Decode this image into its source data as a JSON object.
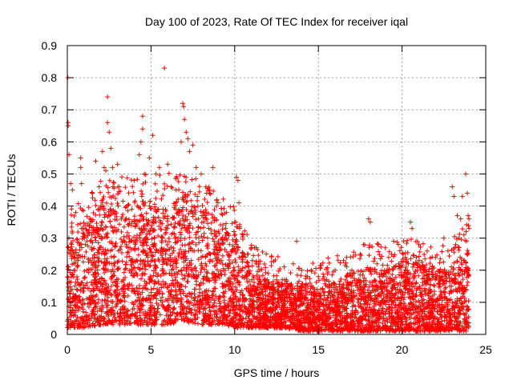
{
  "chart_data": {
    "type": "scatter",
    "title": "Day 100 of 2023, Rate Of TEC Index for receiver iqal",
    "xlabel": "GPS time / hours",
    "ylabel": "ROTI / TECUs",
    "xlim": [
      0,
      25
    ],
    "ylim": [
      0,
      0.9
    ],
    "x_ticks": [
      0,
      5,
      10,
      15,
      20,
      25
    ],
    "y_ticks": [
      0,
      0.1,
      0.2,
      0.3,
      0.4,
      0.5,
      0.6,
      0.7,
      0.8,
      0.9
    ],
    "x_tick_labels": [
      "0",
      "5",
      "10",
      "15",
      "20",
      "25"
    ],
    "y_tick_labels": [
      "0",
      "0.1",
      "0.2",
      "0.3",
      "0.4",
      "0.5",
      "0.6",
      "0.7",
      "0.8",
      "0.9"
    ],
    "grid": true,
    "marker": "+",
    "color": "#ff0000",
    "series": [
      {
        "name": "ROTI",
        "points": [
          [
            0.03,
            0.8
          ],
          [
            0.05,
            0.66
          ],
          [
            0.05,
            0.65
          ],
          [
            0.1,
            0.56
          ],
          [
            0.2,
            0.47
          ],
          [
            0.3,
            0.45
          ],
          [
            0.5,
            0.38
          ],
          [
            0.8,
            0.55
          ],
          [
            0.8,
            0.52
          ],
          [
            0.85,
            0.47
          ],
          [
            1.5,
            0.44
          ],
          [
            1.7,
            0.54
          ],
          [
            1.9,
            0.46
          ],
          [
            2.1,
            0.57
          ],
          [
            2.2,
            0.52
          ],
          [
            2.3,
            0.51
          ],
          [
            2.4,
            0.74
          ],
          [
            2.4,
            0.66
          ],
          [
            2.5,
            0.63
          ],
          [
            2.6,
            0.58
          ],
          [
            2.7,
            0.52
          ],
          [
            3.0,
            0.53
          ],
          [
            3.1,
            0.46
          ],
          [
            4.0,
            0.48
          ],
          [
            4.3,
            0.56
          ],
          [
            4.4,
            0.6
          ],
          [
            4.5,
            0.68
          ],
          [
            4.5,
            0.64
          ],
          [
            4.6,
            0.5
          ],
          [
            4.9,
            0.55
          ],
          [
            5.1,
            0.62
          ],
          [
            5.3,
            0.5
          ],
          [
            5.5,
            0.52
          ],
          [
            5.8,
            0.83
          ],
          [
            6.0,
            0.53
          ],
          [
            6.2,
            0.46
          ],
          [
            6.5,
            0.45
          ],
          [
            6.8,
            0.6
          ],
          [
            6.9,
            0.72
          ],
          [
            6.95,
            0.71
          ],
          [
            7.0,
            0.67
          ],
          [
            7.1,
            0.63
          ],
          [
            7.2,
            0.61
          ],
          [
            7.3,
            0.57
          ],
          [
            7.5,
            0.59
          ],
          [
            7.7,
            0.52
          ],
          [
            8.0,
            0.5
          ],
          [
            8.5,
            0.44
          ],
          [
            8.7,
            0.52
          ],
          [
            9.0,
            0.41
          ],
          [
            9.5,
            0.38
          ],
          [
            10.0,
            0.35
          ],
          [
            10.1,
            0.49
          ],
          [
            10.2,
            0.48
          ],
          [
            10.25,
            0.41
          ],
          [
            10.5,
            0.31
          ],
          [
            11.0,
            0.27
          ],
          [
            11.5,
            0.2
          ],
          [
            13.5,
            0.22
          ],
          [
            13.7,
            0.29
          ],
          [
            14.0,
            0.2
          ],
          [
            16.5,
            0.23
          ],
          [
            17.5,
            0.25
          ],
          [
            17.7,
            0.28
          ],
          [
            18.0,
            0.36
          ],
          [
            18.1,
            0.35
          ],
          [
            19.0,
            0.27
          ],
          [
            19.5,
            0.29
          ],
          [
            20.5,
            0.35
          ],
          [
            20.6,
            0.33
          ],
          [
            21.0,
            0.28
          ],
          [
            21.5,
            0.26
          ],
          [
            22.5,
            0.3
          ],
          [
            23.0,
            0.46
          ],
          [
            23.1,
            0.43
          ],
          [
            23.3,
            0.37
          ],
          [
            23.5,
            0.36
          ],
          [
            23.6,
            0.43
          ],
          [
            23.8,
            0.5
          ],
          [
            23.9,
            0.44
          ],
          [
            23.95,
            0.37
          ],
          [
            24.0,
            0.36
          ],
          [
            24.0,
            0.33
          ],
          [
            23.7,
            0.31
          ],
          [
            23.2,
            0.28
          ],
          [
            22.0,
            0.24
          ],
          [
            21.8,
            0.21
          ],
          [
            20.2,
            0.24
          ],
          [
            19.8,
            0.22
          ],
          [
            19.2,
            0.24
          ],
          [
            18.5,
            0.22
          ],
          [
            17.0,
            0.2
          ],
          [
            16.0,
            0.2
          ],
          [
            15.5,
            0.17
          ],
          [
            15.0,
            0.18
          ],
          [
            14.5,
            0.16
          ],
          [
            12.5,
            0.17
          ],
          [
            12.0,
            0.19
          ],
          [
            11.3,
            0.22
          ],
          [
            10.8,
            0.25
          ]
        ]
      }
    ],
    "envelope": {
      "description": "Dense band of ROTI points spanning 0 to 24 hours",
      "x": [
        0,
        1,
        2,
        3,
        4,
        5,
        6,
        7,
        8,
        9,
        10,
        11,
        12,
        13,
        14,
        15,
        16,
        17,
        18,
        19,
        20,
        21,
        22,
        23,
        24
      ],
      "upper": [
        0.3,
        0.35,
        0.4,
        0.42,
        0.4,
        0.43,
        0.42,
        0.45,
        0.4,
        0.36,
        0.32,
        0.2,
        0.17,
        0.16,
        0.16,
        0.15,
        0.17,
        0.19,
        0.21,
        0.2,
        0.23,
        0.22,
        0.2,
        0.22,
        0.27
      ],
      "lower": [
        0.02,
        0.02,
        0.03,
        0.03,
        0.03,
        0.03,
        0.03,
        0.04,
        0.03,
        0.03,
        0.02,
        0.02,
        0.02,
        0.02,
        0.01,
        0.01,
        0.01,
        0.01,
        0.01,
        0.01,
        0.01,
        0.01,
        0.01,
        0.01,
        0.01
      ],
      "count": 5200
    }
  }
}
